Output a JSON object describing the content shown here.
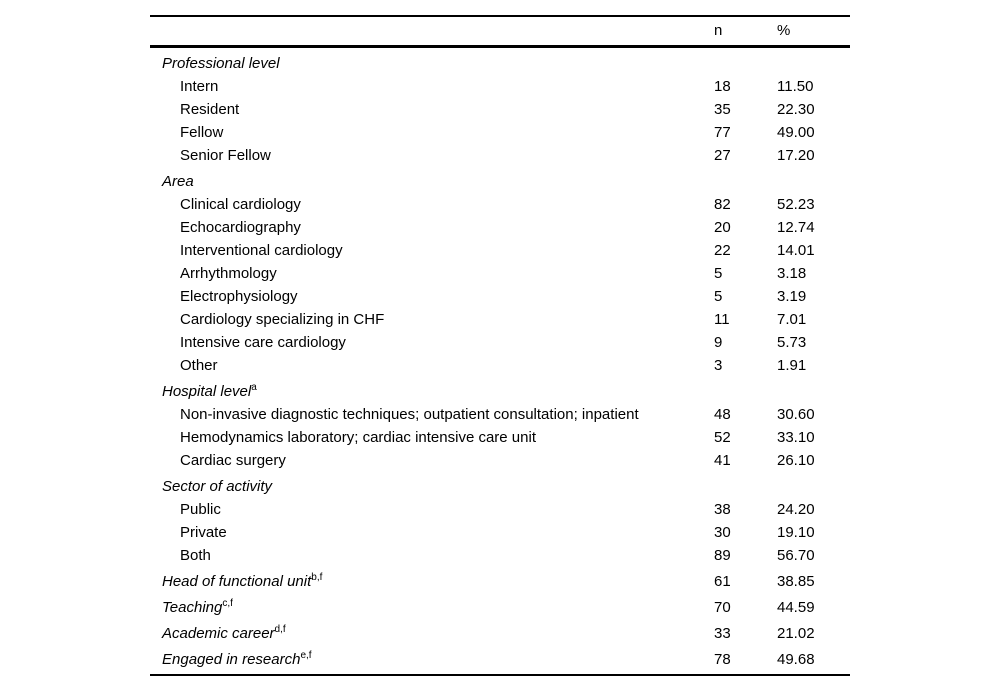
{
  "table": {
    "header": {
      "n_label": "n",
      "pct_label": "%"
    },
    "rows": [
      {
        "type": "group",
        "label": "Professional level"
      },
      {
        "type": "item",
        "label": "Intern",
        "n": "18",
        "pct": "11.50"
      },
      {
        "type": "item",
        "label": "Resident",
        "n": "35",
        "pct": "22.30"
      },
      {
        "type": "item",
        "label": "Fellow",
        "n": "77",
        "pct": "49.00"
      },
      {
        "type": "item",
        "label": "Senior Fellow",
        "n": "27",
        "pct": "17.20"
      },
      {
        "type": "group",
        "label": "Area"
      },
      {
        "type": "item",
        "label": "Clinical cardiology",
        "n": "82",
        "pct": "52.23"
      },
      {
        "type": "item",
        "label": "Echocardiography",
        "n": "20",
        "pct": "12.74"
      },
      {
        "type": "item",
        "label": "Interventional cardiology",
        "n": "22",
        "pct": "14.01"
      },
      {
        "type": "item",
        "label": "Arrhythmology",
        "n": "5",
        "pct": "3.18"
      },
      {
        "type": "item",
        "label": "Electrophysiology",
        "n": "5",
        "pct": "3.19"
      },
      {
        "type": "item",
        "label": "Cardiology specializing in CHF",
        "n": "11",
        "pct": "7.01"
      },
      {
        "type": "item",
        "label": "Intensive care cardiology",
        "n": "9",
        "pct": "5.73"
      },
      {
        "type": "item",
        "label": "Other",
        "n": "3",
        "pct": "1.91"
      },
      {
        "type": "group",
        "label": "Hospital level",
        "sup": "a"
      },
      {
        "type": "item",
        "label": "Non-invasive diagnostic techniques; outpatient consultation; inpatient",
        "n": "48",
        "pct": "30.60"
      },
      {
        "type": "item",
        "label": "Hemodynamics laboratory; cardiac intensive care unit",
        "n": "52",
        "pct": "33.10"
      },
      {
        "type": "item",
        "label": "Cardiac surgery",
        "n": "41",
        "pct": "26.10"
      },
      {
        "type": "group",
        "label": "Sector of activity"
      },
      {
        "type": "item",
        "label": "Public",
        "n": "38",
        "pct": "24.20"
      },
      {
        "type": "item",
        "label": "Private",
        "n": "30",
        "pct": "19.10"
      },
      {
        "type": "item",
        "label": "Both",
        "n": "89",
        "pct": "56.70"
      },
      {
        "type": "groupvalue",
        "label": "Head of functional unit",
        "sup": "b,f",
        "n": "61",
        "pct": "38.85"
      },
      {
        "type": "groupvalue",
        "label": "Teaching",
        "sup": "c,f",
        "n": "70",
        "pct": "44.59"
      },
      {
        "type": "groupvalue",
        "label": "Academic career",
        "sup": "d,f",
        "n": "33",
        "pct": "21.02"
      },
      {
        "type": "groupvalue",
        "label": "Engaged in research",
        "sup": "e,f",
        "n": "78",
        "pct": "49.68"
      }
    ]
  }
}
